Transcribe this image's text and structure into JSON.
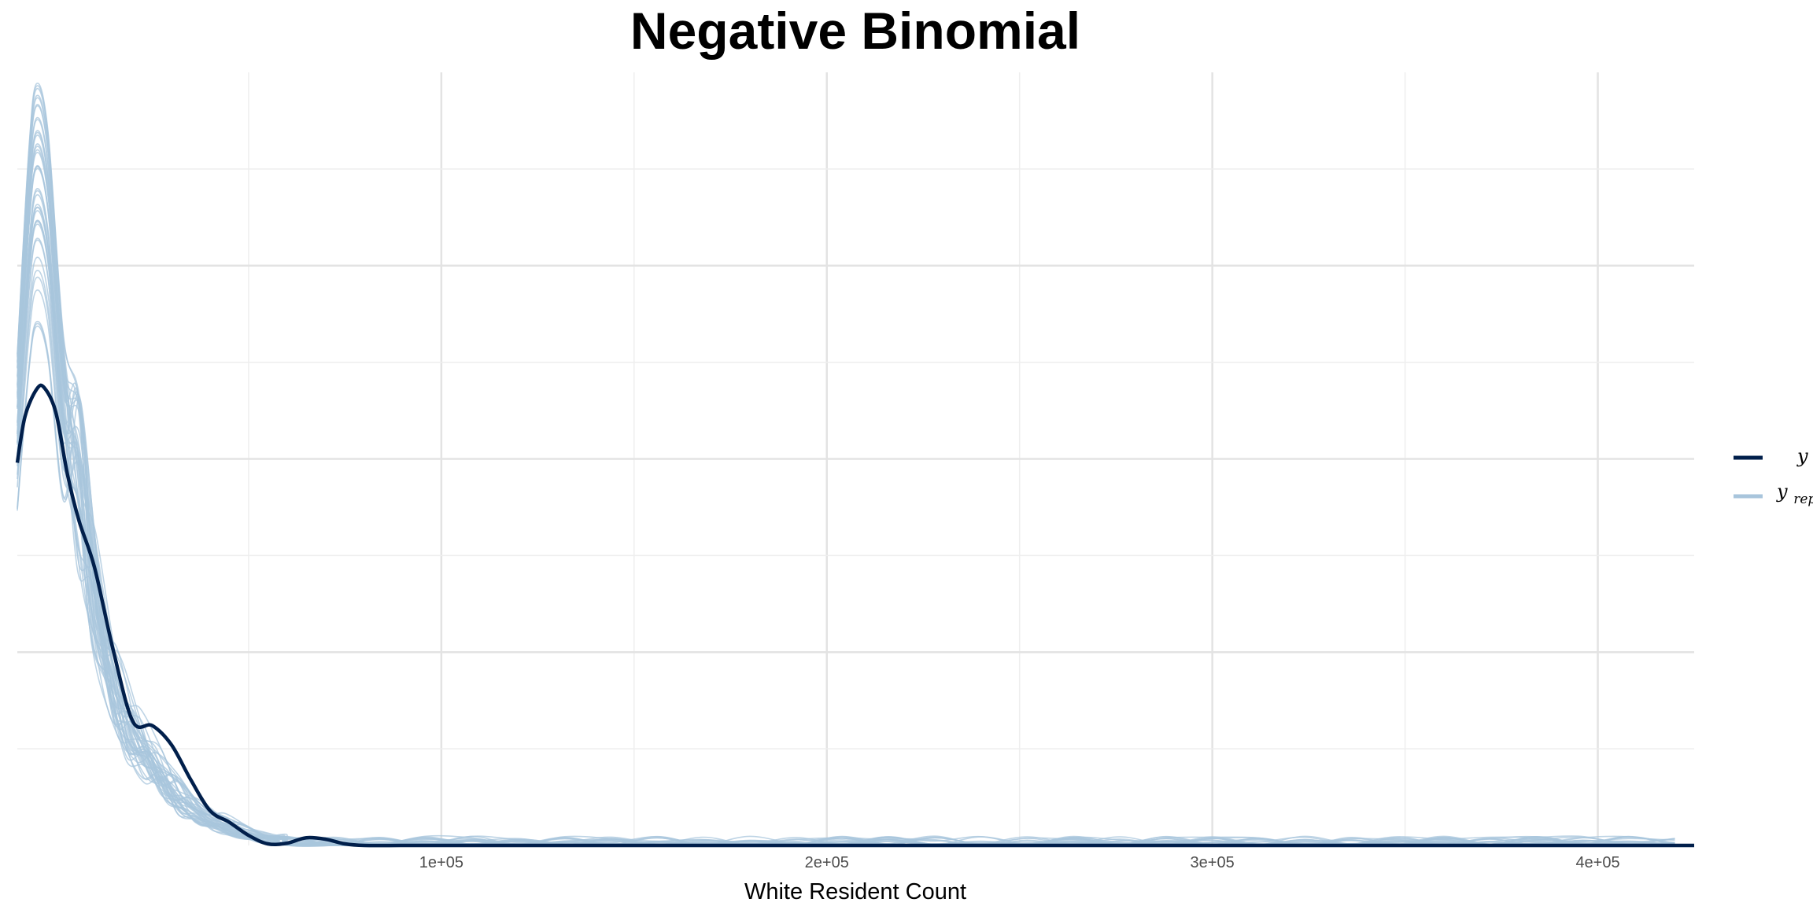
{
  "chart_data": {
    "type": "line",
    "title": "Negative Binomial",
    "xlabel": "White Resident Count",
    "ylabel": "",
    "xlim": [
      -10000,
      425000
    ],
    "ylim": [
      0,
      1
    ],
    "x_ticks": [
      100000,
      200000,
      300000,
      400000
    ],
    "x_tick_labels": [
      "1e+05",
      "2e+05",
      "3e+05",
      "4e+05"
    ],
    "y_ticks_shown": false,
    "grid": true,
    "legend": {
      "placement": "right",
      "entries": [
        {
          "label": "y",
          "subscript": "",
          "color": "#011f4b",
          "role": "observed"
        },
        {
          "label": "y",
          "subscript": "rep",
          "color": "#a8c5dc",
          "role": "replicated"
        }
      ]
    },
    "colors": {
      "observed": "#011f4b",
      "replicated": "#a8c5dc",
      "grid_major": "#e3e3e3",
      "grid_minor": "#eeeeee"
    },
    "series": [
      {
        "name": "y",
        "x": [
          -10000,
          -8000,
          -5000,
          -3000,
          0,
          3000,
          6000,
          10000,
          15000,
          20000,
          25000,
          30000,
          35000,
          40000,
          45000,
          50000,
          55000,
          60000,
          65000,
          70000,
          75000,
          80000,
          90000,
          100000,
          150000,
          200000,
          300000,
          425000
        ],
        "y": [
          0.495,
          0.555,
          0.59,
          0.592,
          0.56,
          0.48,
          0.42,
          0.36,
          0.25,
          0.16,
          0.155,
          0.13,
          0.085,
          0.045,
          0.03,
          0.013,
          0.002,
          0.003,
          0.01,
          0.008,
          0.002,
          0.0,
          0.0,
          0.0,
          0.0,
          0.0,
          0.0,
          0.0
        ]
      }
    ],
    "replicate_draws": 40,
    "replicate_shape": {
      "x": [
        -10000,
        -7000,
        -5000,
        -2000,
        2000,
        6000,
        10000,
        15000,
        20000,
        25000,
        30000,
        35000,
        40000,
        45000,
        50000,
        55000,
        60000,
        70000,
        80000,
        100000,
        150000,
        200000,
        300000,
        425000
      ],
      "y": [
        0.6,
        0.85,
        0.93,
        0.87,
        0.62,
        0.46,
        0.32,
        0.2,
        0.14,
        0.1,
        0.075,
        0.05,
        0.033,
        0.023,
        0.014,
        0.009,
        0.006,
        0.003,
        0.002,
        0.0008,
        0.0003,
        0.0001,
        5e-05,
        0.0
      ]
    }
  }
}
